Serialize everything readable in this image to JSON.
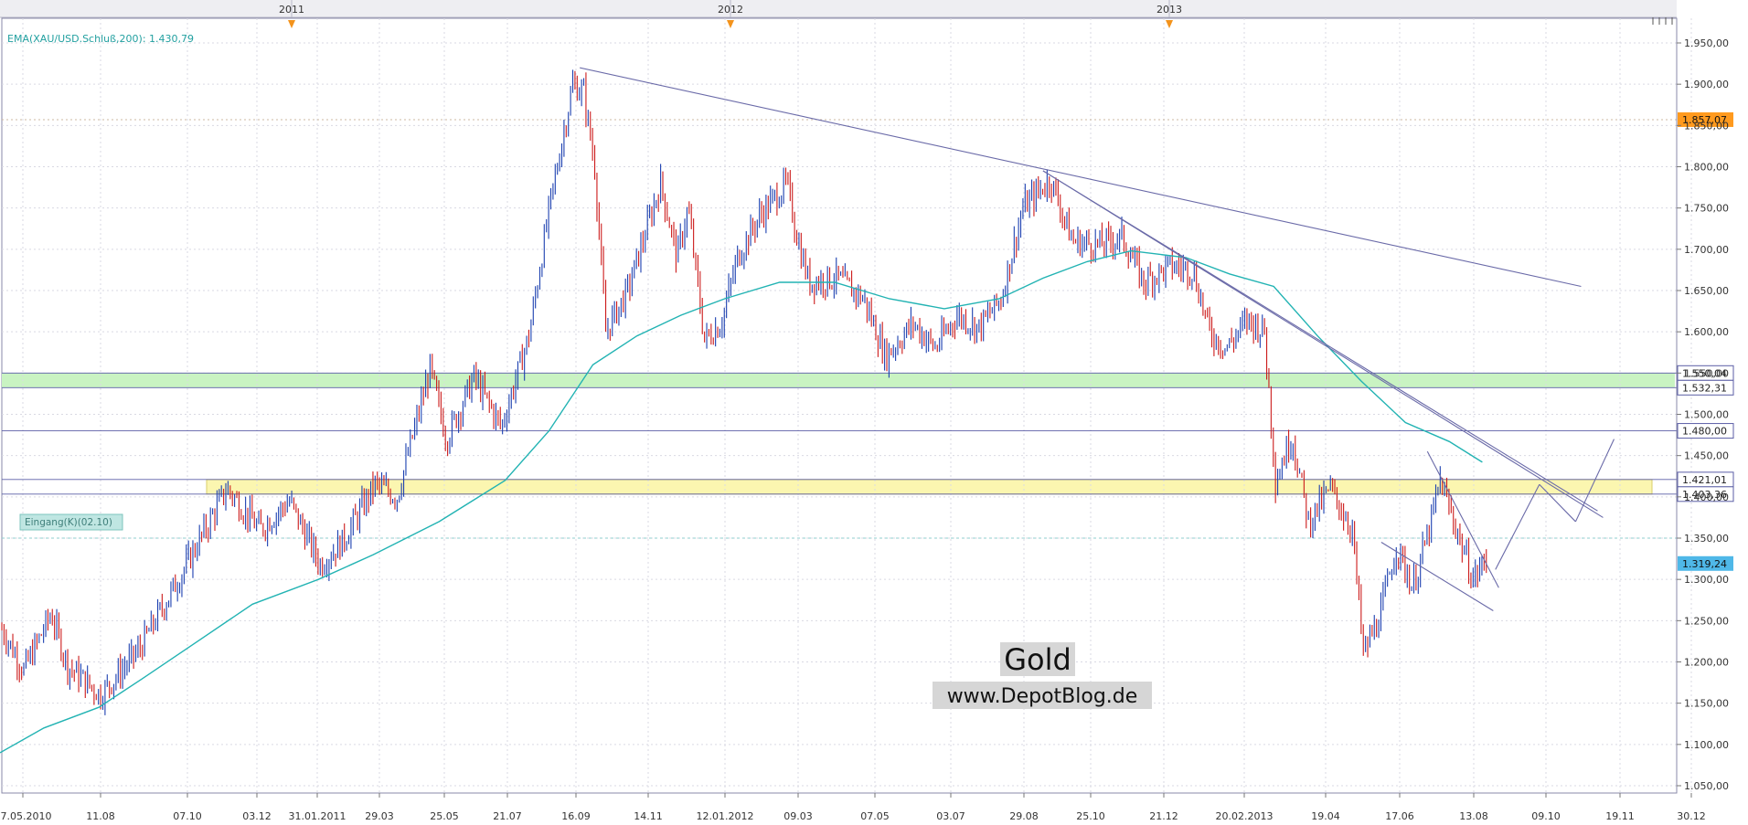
{
  "chart_data": {
    "type": "candlestick",
    "indicator_label": "EMA(XAU/USD.Schluß,200): 1.430,79",
    "year_markers": [
      "2011",
      "2012",
      "2013"
    ],
    "date_ticks": [
      "07.05.2010",
      "11.08",
      "07.10",
      "03.12",
      "31.01.2011",
      "29.03",
      "25.05",
      "21.07",
      "16.09",
      "14.11",
      "12.01.2012",
      "09.03",
      "07.05",
      "03.07",
      "29.08",
      "25.10",
      "21.12",
      "20.02.2013",
      "19.04",
      "17.06",
      "13.08",
      "09.10",
      "19.11",
      "30.12"
    ],
    "price_ticks": [
      1950,
      1900,
      1850,
      1800,
      1750,
      1700,
      1650,
      1600,
      1550,
      1500,
      1450,
      1400,
      1350,
      1300,
      1250,
      1200,
      1150,
      1100,
      1050
    ],
    "price_tick_labels": [
      "1.950,00",
      "1.900,00",
      "1.850,00",
      "1.800,00",
      "1.750,00",
      "1.700,00",
      "1.650,00",
      "1.600,00",
      "1.550,00",
      "1.500,00",
      "1.450,00",
      "1.400,00",
      "1.350,00",
      "1.300,00",
      "1.250,00",
      "1.200,00",
      "1.150,00",
      "1.100,00",
      "1.050,00"
    ],
    "ylim": [
      1032,
      1965
    ],
    "price_path": [
      [
        0,
        1240
      ],
      [
        20,
        1190
      ],
      [
        45,
        1258
      ],
      [
        60,
        1195
      ],
      [
        90,
        1160
      ],
      [
        125,
        1215
      ],
      [
        165,
        1310
      ],
      [
        205,
        1410
      ],
      [
        235,
        1360
      ],
      [
        262,
        1395
      ],
      [
        290,
        1318
      ],
      [
        310,
        1345
      ],
      [
        340,
        1415
      ],
      [
        360,
        1400
      ],
      [
        390,
        1555
      ],
      [
        405,
        1470
      ],
      [
        430,
        1545
      ],
      [
        455,
        1485
      ],
      [
        480,
        1595
      ],
      [
        500,
        1760
      ],
      [
        520,
        1900
      ],
      [
        530,
        1890
      ],
      [
        540,
        1800
      ],
      [
        550,
        1600
      ],
      [
        570,
        1650
      ],
      [
        600,
        1780
      ],
      [
        615,
        1690
      ],
      [
        625,
        1750
      ],
      [
        640,
        1590
      ],
      [
        655,
        1610
      ],
      [
        670,
        1690
      ],
      [
        690,
        1740
      ],
      [
        715,
        1780
      ],
      [
        725,
        1710
      ],
      [
        735,
        1660
      ],
      [
        760,
        1665
      ],
      [
        785,
        1640
      ],
      [
        805,
        1570
      ],
      [
        830,
        1610
      ],
      [
        850,
        1580
      ],
      [
        870,
        1620
      ],
      [
        890,
        1605
      ],
      [
        910,
        1640
      ],
      [
        930,
        1750
      ],
      [
        955,
        1785
      ],
      [
        975,
        1710
      ],
      [
        1000,
        1705
      ],
      [
        1020,
        1715
      ],
      [
        1040,
        1660
      ],
      [
        1065,
        1680
      ],
      [
        1085,
        1675
      ],
      [
        1100,
        1600
      ],
      [
        1115,
        1580
      ],
      [
        1135,
        1615
      ],
      [
        1150,
        1600
      ],
      [
        1160,
        1420
      ],
      [
        1175,
        1475
      ],
      [
        1190,
        1370
      ],
      [
        1210,
        1410
      ],
      [
        1230,
        1360
      ],
      [
        1240,
        1210
      ],
      [
        1255,
        1255
      ],
      [
        1270,
        1340
      ],
      [
        1285,
        1290
      ],
      [
        1300,
        1360
      ],
      [
        1310,
        1420
      ],
      [
        1325,
        1360
      ],
      [
        1340,
        1300
      ],
      [
        1352,
        1325
      ]
    ],
    "ema_path": [
      [
        0,
        1090
      ],
      [
        40,
        1120
      ],
      [
        90,
        1145
      ],
      [
        130,
        1180
      ],
      [
        180,
        1225
      ],
      [
        230,
        1270
      ],
      [
        290,
        1300
      ],
      [
        340,
        1330
      ],
      [
        400,
        1370
      ],
      [
        460,
        1420
      ],
      [
        500,
        1480
      ],
      [
        540,
        1560
      ],
      [
        580,
        1595
      ],
      [
        620,
        1620
      ],
      [
        660,
        1640
      ],
      [
        710,
        1660
      ],
      [
        760,
        1660
      ],
      [
        810,
        1640
      ],
      [
        860,
        1628
      ],
      [
        910,
        1640
      ],
      [
        950,
        1665
      ],
      [
        990,
        1685
      ],
      [
        1030,
        1698
      ],
      [
        1080,
        1690
      ],
      [
        1120,
        1670
      ],
      [
        1160,
        1655
      ],
      [
        1200,
        1595
      ],
      [
        1240,
        1540
      ],
      [
        1280,
        1490
      ],
      [
        1320,
        1467
      ],
      [
        1350,
        1442
      ]
    ],
    "trendlines": [
      {
        "from": [
          528,
          1920
        ],
        "to": [
          1440,
          1655
        ]
      },
      {
        "from": [
          950,
          1795
        ],
        "to": [
          1455,
          1383
        ]
      },
      {
        "from": [
          950,
          1795
        ],
        "to": [
          1460,
          1375
        ]
      },
      {
        "from": [
          1300,
          1455
        ],
        "to": [
          1365,
          1290
        ]
      },
      {
        "from": [
          1258,
          1345
        ],
        "to": [
          1360,
          1262
        ]
      },
      {
        "from": [
          1362,
          1312
        ],
        "to": [
          1402,
          1415
        ]
      },
      {
        "from": [
          1402,
          1415
        ],
        "to": [
          1435,
          1370
        ]
      },
      {
        "from": [
          1435,
          1370
        ],
        "to": [
          1470,
          1470
        ]
      }
    ],
    "horizontal_levels": [
      {
        "value": 1550.04,
        "label": "1.550,04",
        "color": "#5b5ea6"
      },
      {
        "value": 1532.31,
        "label": "1.532,31",
        "color": "#5b5ea6"
      },
      {
        "value": 1480.0,
        "label": "1.480,00",
        "color": "#5b5ea6"
      },
      {
        "value": 1421.01,
        "label": "1.421,01",
        "color": "#5b5ea6"
      },
      {
        "value": 1403.36,
        "label": "1.403,36",
        "color": "#5b5ea6"
      }
    ],
    "zones": [
      {
        "from": 1532.31,
        "to": 1550.04,
        "color": "#c9f3c2"
      },
      {
        "from": 1403.36,
        "to": 1421.01,
        "color": "#fbf6b0"
      }
    ],
    "markers": [
      {
        "value": 1857.07,
        "label": "1.857,07",
        "color": "#ff9a1e"
      },
      {
        "value": 1319.24,
        "label": "1.319,24",
        "color": "#4fb8e8"
      }
    ],
    "entry_value": 1350,
    "entry_label": "Eingang(K)(02.10)",
    "watermark_title": "Gold",
    "watermark_site": "www.DepotBlog.de",
    "colors": {
      "candle_up": "#1b3fb0",
      "candle_down": "#cc1a1a",
      "ema": "#22b3b3",
      "trendline": "#6a6aa8",
      "grid": "#d9d9e3"
    }
  }
}
